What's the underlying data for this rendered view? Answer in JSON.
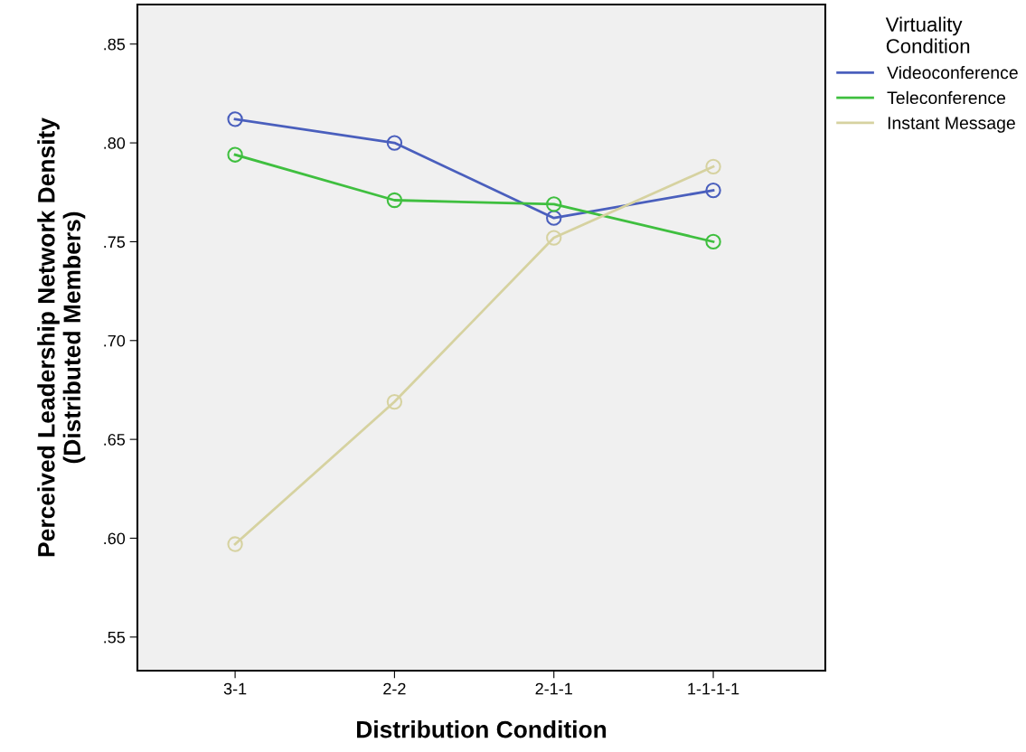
{
  "chart_data": {
    "type": "line",
    "xlabel": "Distribution Condition",
    "ylabel": "Perceived Leadership Network Density\n(Distributed Members)",
    "legend_title": "Virtuality\nCondition",
    "legend": "top right",
    "marker": "circle",
    "grid": false,
    "categories": [
      "3-1",
      "2-2",
      "2-1-1",
      "1-1-1-1"
    ],
    "ylim": [
      0.533,
      0.87
    ],
    "yticks": [
      {
        "value": 0.55,
        "label": ".55"
      },
      {
        "value": 0.6,
        "label": ".60"
      },
      {
        "value": 0.65,
        "label": ".65"
      },
      {
        "value": 0.7,
        "label": ".70"
      },
      {
        "value": 0.75,
        "label": ".75"
      },
      {
        "value": 0.8,
        "label": ".80"
      },
      {
        "value": 0.85,
        "label": ".85"
      }
    ],
    "series": [
      {
        "name": "Videoconference",
        "color": "#4a5fbd",
        "values": [
          0.812,
          0.8,
          0.762,
          0.776
        ]
      },
      {
        "name": "Teleconference",
        "color": "#3fbf3f",
        "values": [
          0.794,
          0.771,
          0.769,
          0.75
        ]
      },
      {
        "name": "Instant Message",
        "color": "#d6d2a0",
        "values": [
          0.597,
          0.669,
          0.752,
          0.788
        ]
      }
    ]
  }
}
